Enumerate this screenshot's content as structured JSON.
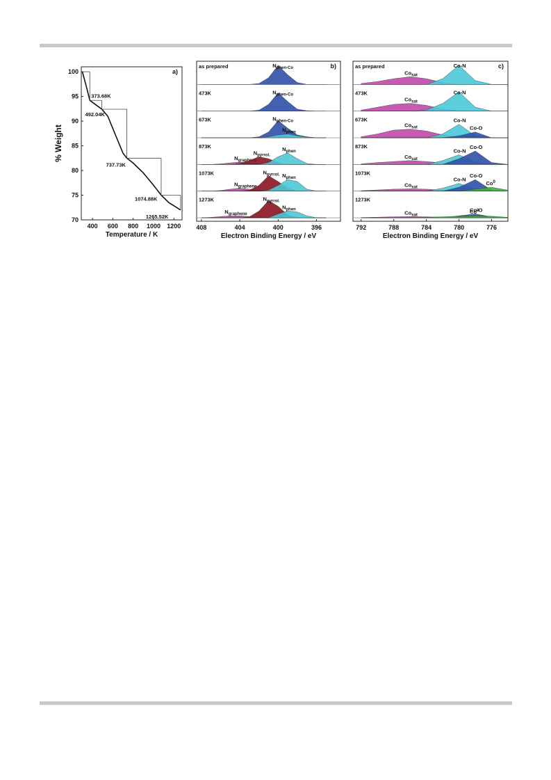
{
  "chart_data": [
    {
      "type": "line",
      "panel_label": "a)",
      "y_label": "% Weight",
      "x_label": "Temperature / K",
      "xlim": [
        290,
        1280
      ],
      "ylim": [
        70,
        101
      ],
      "xticks": [
        400,
        600,
        800,
        1000,
        1200
      ],
      "yticks": [
        70,
        75,
        80,
        85,
        90,
        95,
        100
      ],
      "color": "#111111",
      "x": [
        300,
        340,
        373.68,
        420,
        492.04,
        550,
        600,
        650,
        700,
        737.73,
        800,
        900,
        1000,
        1074.88,
        1150,
        1265.52
      ],
      "y": [
        100,
        97,
        94.2,
        93.5,
        92.4,
        91,
        88.5,
        86,
        83.5,
        82.5,
        81.5,
        79.5,
        77,
        75,
        73.5,
        72
      ],
      "annotations": [
        {
          "text": "373.68K",
          "x": 373.68,
          "y": 94.2
        },
        {
          "text": "492.04K",
          "x": 492.04,
          "y": 92.4
        },
        {
          "text": "737.73K",
          "x": 737.73,
          "y": 82.5
        },
        {
          "text": "1074.88K",
          "x": 1074.88,
          "y": 75
        },
        {
          "text": "1265.52K",
          "x": 1265.52,
          "y": 72
        }
      ]
    },
    {
      "type": "spectra",
      "panel_label": "b)",
      "x_label": "Electron Binding Energy / eV",
      "xlim": [
        408.5,
        393.5
      ],
      "xticks": [
        408,
        404,
        400,
        396
      ],
      "x": [
        408,
        407,
        406,
        405,
        404,
        403,
        402,
        401,
        400,
        399,
        398,
        397,
        396,
        395
      ],
      "rows": [
        {
          "label": "as prepared",
          "components": [
            {
              "label": {
                "text": "N",
                "sub": "phen-Co"
              },
              "color": "#2f4fa8",
              "values": [
                0,
                0,
                0,
                0,
                0,
                0,
                0.05,
                0.35,
                1.0,
                0.5,
                0.1,
                0,
                0,
                0
              ]
            }
          ]
        },
        {
          "label": "473K",
          "components": [
            {
              "label": {
                "text": "N",
                "sub": "phen-Co"
              },
              "color": "#2f4fa8",
              "values": [
                0,
                0,
                0,
                0,
                0,
                0,
                0.05,
                0.35,
                0.95,
                0.5,
                0.1,
                0.02,
                0,
                0
              ]
            }
          ]
        },
        {
          "label": "673K",
          "components": [
            {
              "label": {
                "text": "N",
                "sub": "phen-Co"
              },
              "color": "#2f4fa8",
              "values": [
                0,
                0,
                0,
                0,
                0,
                0,
                0.05,
                0.3,
                0.9,
                0.5,
                0.15,
                0.05,
                0,
                0
              ]
            },
            {
              "label": {
                "text": "N",
                "sub": "phen"
              },
              "color": "#4cc8d8",
              "values": [
                0,
                0,
                0,
                0,
                0,
                0,
                0,
                0.05,
                0.15,
                0.2,
                0.1,
                0.03,
                0,
                0
              ]
            }
          ]
        },
        {
          "label": "873K",
          "components": [
            {
              "label": {
                "text": "N",
                "sub": "graphene"
              },
              "color": "#c04aa8",
              "values": [
                0,
                0,
                0.03,
                0.08,
                0.12,
                0.08,
                0.03,
                0,
                0,
                0,
                0,
                0,
                0,
                0
              ]
            },
            {
              "label": {
                "text": "N",
                "sub": "pyrrol."
              },
              "color": "#8a1420",
              "values": [
                0,
                0,
                0,
                0,
                0.05,
                0.2,
                0.4,
                0.3,
                0.1,
                0,
                0,
                0,
                0,
                0
              ]
            },
            {
              "label": {
                "text": "N",
                "sub": "phen"
              },
              "color": "#4cc8d8",
              "values": [
                0,
                0,
                0,
                0,
                0,
                0,
                0,
                0.1,
                0.4,
                0.6,
                0.3,
                0.05,
                0,
                0
              ]
            }
          ]
        },
        {
          "label": "1073K",
          "components": [
            {
              "label": {
                "text": "N",
                "sub": "graphene"
              },
              "color": "#c04aa8",
              "values": [
                0,
                0,
                0.03,
                0.1,
                0.15,
                0.1,
                0.04,
                0,
                0,
                0,
                0,
                0,
                0,
                0
              ]
            },
            {
              "label": {
                "text": "N",
                "sub": "pyrrol."
              },
              "color": "#8a1420",
              "values": [
                0,
                0,
                0,
                0,
                0,
                0.05,
                0.3,
                0.8,
                0.5,
                0.15,
                0.02,
                0,
                0,
                0
              ]
            },
            {
              "label": {
                "text": "N",
                "sub": "phen"
              },
              "color": "#4cc8d8",
              "values": [
                0,
                0,
                0,
                0,
                0,
                0,
                0,
                0.05,
                0.3,
                0.6,
                0.5,
                0.1,
                0,
                0
              ]
            }
          ]
        },
        {
          "label": "1273K",
          "components": [
            {
              "label": {
                "text": "N",
                "sub": "graphene"
              },
              "color": "#c04aa8",
              "values": [
                0,
                0.02,
                0.06,
                0.1,
                0.1,
                0.06,
                0.02,
                0,
                0,
                0,
                0,
                0,
                0,
                0
              ]
            },
            {
              "label": {
                "text": "N",
                "sub": "pyrrol."
              },
              "color": "#8a1420",
              "values": [
                0,
                0,
                0,
                0,
                0,
                0.05,
                0.35,
                0.9,
                0.6,
                0.15,
                0.02,
                0,
                0,
                0
              ]
            },
            {
              "label": {
                "text": "N",
                "sub": "phen"
              },
              "color": "#4cc8d8",
              "values": [
                0,
                0,
                0,
                0,
                0,
                0,
                0,
                0,
                0.2,
                0.35,
                0.3,
                0.1,
                0,
                0
              ]
            }
          ]
        }
      ]
    },
    {
      "type": "spectra",
      "panel_label": "c)",
      "x_label": "Electron Binding Energy / eV",
      "xlim": [
        793,
        774
      ],
      "xticks": [
        792,
        788,
        784,
        780,
        776
      ],
      "x": [
        792,
        790,
        788,
        786,
        784,
        782,
        780,
        778,
        776,
        774
      ],
      "rows": [
        {
          "label": "as prepared",
          "components": [
            {
              "label": {
                "text": "Co",
                "sub": "sat"
              },
              "color": "#c04aa8",
              "values": [
                0.05,
                0.15,
                0.3,
                0.4,
                0.3,
                0.1,
                0,
                0,
                0,
                0
              ]
            },
            {
              "label": {
                "text": "Co-N"
              },
              "color": "#4cc8d8",
              "values": [
                0,
                0,
                0,
                0,
                0,
                0.3,
                1.0,
                0.2,
                0,
                0
              ]
            }
          ]
        },
        {
          "label": "473K",
          "components": [
            {
              "label": {
                "text": "Co",
                "sub": "sat"
              },
              "color": "#c04aa8",
              "values": [
                0.05,
                0.2,
                0.35,
                0.4,
                0.3,
                0.1,
                0.02,
                0,
                0,
                0
              ]
            },
            {
              "label": {
                "text": "Co-N"
              },
              "color": "#4cc8d8",
              "values": [
                0,
                0,
                0,
                0,
                0.05,
                0.4,
                1.0,
                0.2,
                0,
                0
              ]
            }
          ]
        },
        {
          "label": "673K",
          "components": [
            {
              "label": {
                "text": "Co",
                "sub": "sat"
              },
              "color": "#c04aa8",
              "values": [
                0.05,
                0.2,
                0.4,
                0.45,
                0.35,
                0.15,
                0.02,
                0,
                0,
                0
              ]
            },
            {
              "label": {
                "text": "Co-N"
              },
              "color": "#4cc8d8",
              "values": [
                0,
                0,
                0,
                0,
                0,
                0.2,
                0.7,
                0.1,
                0,
                0
              ]
            },
            {
              "label": {
                "text": "Co-O"
              },
              "color": "#2f4fa8",
              "values": [
                0,
                0,
                0,
                0,
                0,
                0,
                0.1,
                0.3,
                0,
                0
              ]
            }
          ]
        },
        {
          "label": "873K",
          "components": [
            {
              "label": {
                "text": "Co",
                "sub": "sat"
              },
              "color": "#c04aa8",
              "values": [
                0.03,
                0.1,
                0.15,
                0.2,
                0.15,
                0.08,
                0,
                0,
                0,
                0
              ]
            },
            {
              "label": {
                "text": "Co-N"
              },
              "color": "#4cc8d8",
              "values": [
                0,
                0,
                0,
                0,
                0,
                0.2,
                0.5,
                0.1,
                0,
                0
              ]
            },
            {
              "label": {
                "text": "Co-O"
              },
              "color": "#2f4fa8",
              "values": [
                0,
                0,
                0,
                0,
                0,
                0,
                0.3,
                0.7,
                0.1,
                0
              ]
            }
          ]
        },
        {
          "label": "1073K",
          "components": [
            {
              "label": {
                "text": "Co",
                "sub": "sat"
              },
              "color": "#c04aa8",
              "values": [
                0.02,
                0.06,
                0.1,
                0.12,
                0.1,
                0.05,
                0.01,
                0,
                0,
                0
              ]
            },
            {
              "label": {
                "text": "Co-N"
              },
              "color": "#4cc8d8",
              "values": [
                0,
                0,
                0,
                0,
                0,
                0.15,
                0.4,
                0.1,
                0,
                0
              ]
            },
            {
              "label": {
                "text": "Co-O"
              },
              "color": "#2f4fa8",
              "values": [
                0,
                0,
                0,
                0,
                0,
                0,
                0.2,
                0.6,
                0.05,
                0
              ]
            },
            {
              "label": {
                "text": "Co",
                "sup": "0"
              },
              "color": "#3cb43c",
              "values": [
                0,
                0,
                0,
                0,
                0,
                0,
                0,
                0.1,
                0.2,
                0.05
              ]
            }
          ]
        },
        {
          "label": "1273K",
          "components": [
            {
              "label": {
                "text": "Co",
                "sub": "sat"
              },
              "color": "#c04aa8",
              "values": [
                0.01,
                0.03,
                0.05,
                0.06,
                0.05,
                0.02,
                0,
                0,
                0,
                0
              ]
            },
            {
              "label": {
                "text": "Co-O"
              },
              "color": "#2f4fa8",
              "values": [
                0,
                0,
                0,
                0,
                0,
                0,
                0.1,
                0.2,
                0.05,
                0
              ]
            },
            {
              "label": {
                "text": "Co",
                "sup": "0"
              },
              "color": "#3cb43c",
              "values": [
                0,
                0,
                0,
                0,
                0.02,
                0.05,
                0.08,
                0.1,
                0.08,
                0.02
              ]
            }
          ]
        }
      ]
    }
  ]
}
